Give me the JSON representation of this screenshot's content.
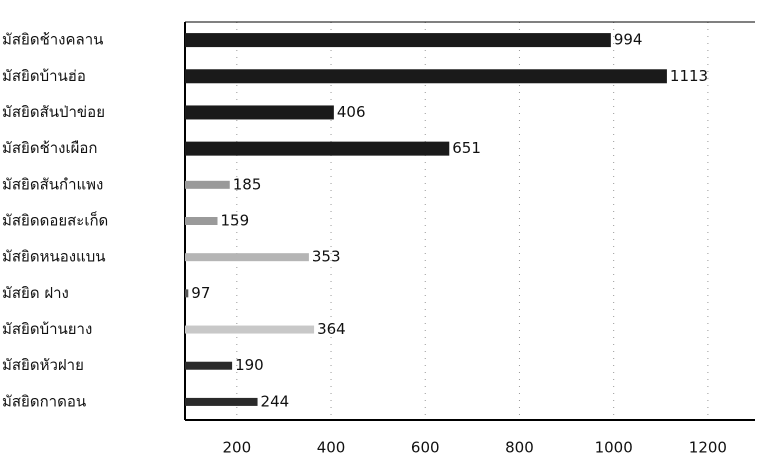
{
  "chart_data": {
    "type": "hbar",
    "categories": [
      "มัสยิดช้างคลาน",
      "มัสยิดบ้านฮ่อ",
      "มัสยิดสันป่าข่อย",
      "มัสยิดช้างเผือก",
      "มัสยิดสันกำแพง",
      "มัสยิดดอยสะเก็ด",
      "มัสยิดหนองแบน",
      "มัสยิด ฝาง",
      "มัสยิดบ้านยาง",
      "มัสยิดหัวฝาย",
      "มัสยิดกาดอน"
    ],
    "values": [
      994,
      1113,
      406,
      651,
      185,
      159,
      353,
      97,
      364,
      190,
      244
    ],
    "colors": [
      "#1a1a1a",
      "#1a1a1a",
      "#1a1a1a",
      "#1a1a1a",
      "#9a9a9a",
      "#9a9a9a",
      "#b5b5b5",
      "#555555",
      "#c8c8c8",
      "#2a2a2a",
      "#2a2a2a"
    ],
    "xlim": [
      90,
      1300
    ],
    "xticks": [
      200,
      400,
      600,
      800,
      1000,
      1200
    ],
    "grid": true
  }
}
